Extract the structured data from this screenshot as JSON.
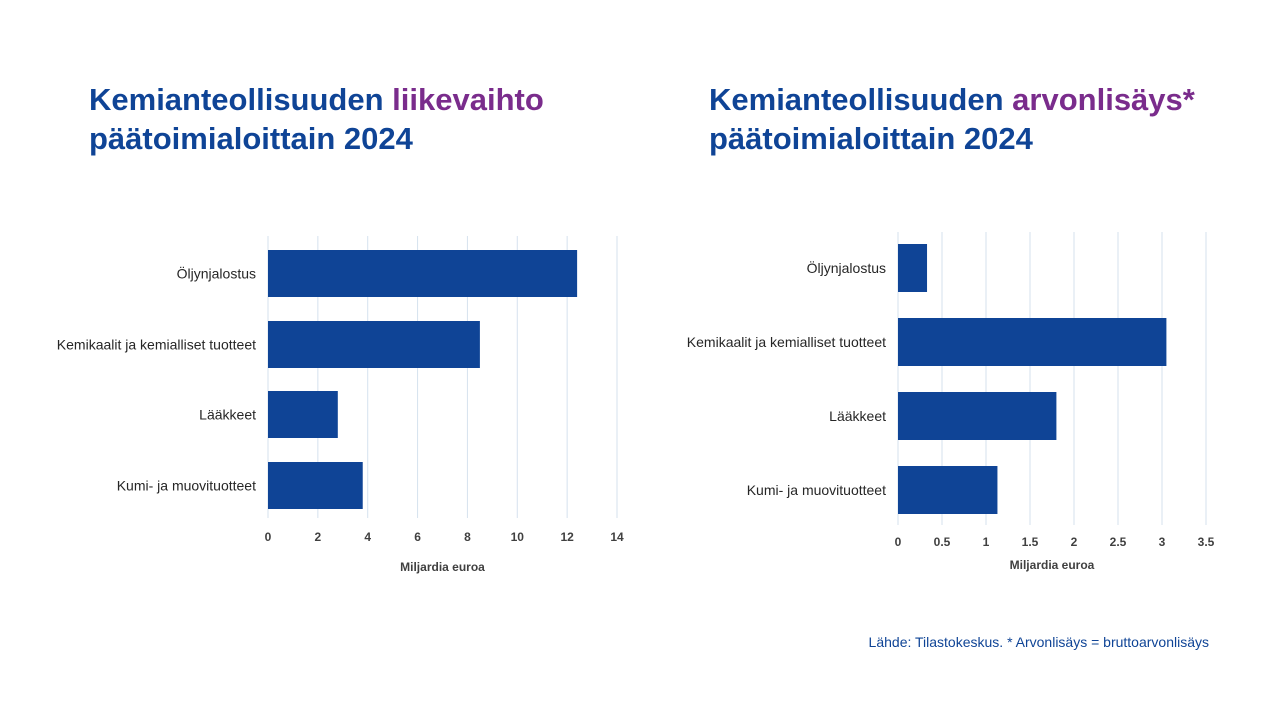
{
  "chart_data": [
    {
      "type": "bar",
      "orientation": "horizontal",
      "title_main": "Kemianteollisuuden",
      "title_highlight": "liikevaihto",
      "title_line2": "päätoimialoittain 2024",
      "categories": [
        "Öljynjalostus",
        "Kemikaalit ja kemialliset tuotteet",
        "Lääkkeet",
        "Kumi- ja muovituotteet"
      ],
      "values": [
        12.4,
        8.5,
        2.8,
        3.8
      ],
      "xlabel": "Miljardia euroa",
      "xlim": [
        0,
        14
      ],
      "xticks": [
        "0",
        "2",
        "4",
        "6",
        "8",
        "10",
        "12",
        "14"
      ],
      "grid": true,
      "bar_color": "#0f4496"
    },
    {
      "type": "bar",
      "orientation": "horizontal",
      "title_main": "Kemianteollisuuden",
      "title_highlight": "arvonlisäys*",
      "title_line2": "päätoimialoittain 2024",
      "categories": [
        "Öljynjalostus",
        "Kemikaalit ja kemialliset tuotteet",
        "Lääkkeet",
        "Kumi- ja muovituotteet"
      ],
      "values": [
        0.33,
        3.05,
        1.8,
        1.13
      ],
      "xlabel": "Miljardia euroa",
      "xlim": [
        0,
        3.5
      ],
      "xticks": [
        "0",
        "0.5",
        "1",
        "1.5",
        "2",
        "2.5",
        "3",
        "3.5"
      ],
      "grid": true,
      "bar_color": "#0f4496"
    }
  ],
  "source": "Lähde: Tilastokeskus. * Arvonlisäys = bruttoarvonlisäys"
}
